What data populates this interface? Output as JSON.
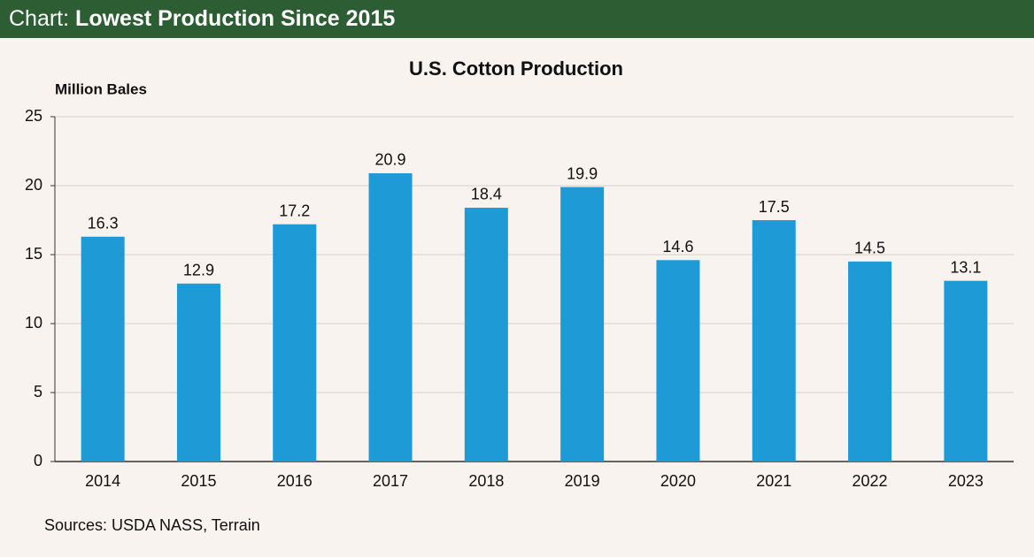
{
  "banner": {
    "label": "Chart:",
    "title": "Lowest Production Since 2015"
  },
  "chart_data": {
    "type": "bar",
    "title": "U.S. Cotton Production",
    "y_axis_label": "Million Bales",
    "categories": [
      "2014",
      "2015",
      "2016",
      "2017",
      "2018",
      "2019",
      "2020",
      "2021",
      "2022",
      "2023"
    ],
    "values": [
      16.3,
      12.9,
      17.2,
      20.9,
      18.4,
      19.9,
      14.6,
      17.5,
      14.5,
      13.1
    ],
    "color": "#1e9ad6",
    "ylim": [
      0,
      25
    ],
    "yticks": [
      0,
      5,
      10,
      15,
      20,
      25
    ],
    "grid": true
  },
  "source": "Sources: USDA NASS, Terrain"
}
